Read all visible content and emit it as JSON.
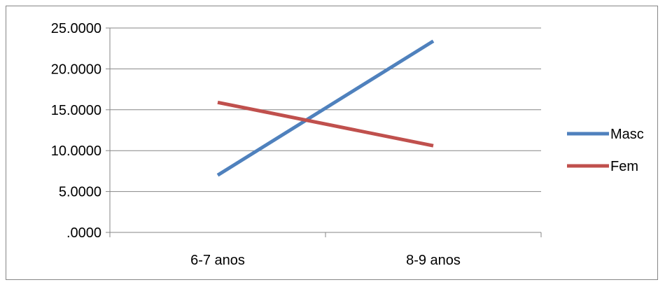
{
  "chart_data": {
    "type": "line",
    "categories": [
      "6-7 anos",
      "8-9 anos"
    ],
    "series": [
      {
        "name": "Masc",
        "values": [
          7.0,
          23.4
        ],
        "color": "#4F81BD"
      },
      {
        "name": "Fem",
        "values": [
          15.9,
          10.6
        ],
        "color": "#C0504D"
      }
    ],
    "y_ticks": [
      ".0000",
      "5.0000",
      "10.0000",
      "15.0000",
      "20.0000",
      "25.0000"
    ],
    "ylim": [
      0,
      25
    ],
    "grid": true,
    "legend_position": "right"
  }
}
